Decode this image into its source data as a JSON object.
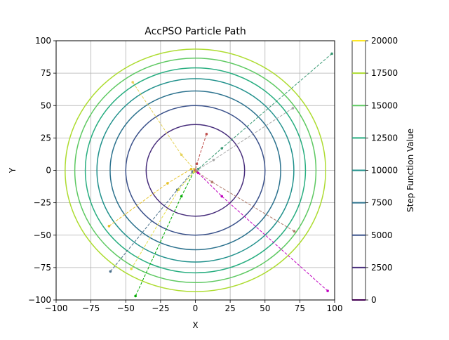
{
  "chart_data": {
    "type": "contour",
    "title": "AccPSO Particle Path",
    "xlabel": "X",
    "ylabel": "Y",
    "xlim": [
      -100,
      100
    ],
    "ylim": [
      -100,
      100
    ],
    "xticks": [
      -100,
      -75,
      -50,
      -25,
      0,
      25,
      50,
      75,
      100
    ],
    "yticks": [
      -100,
      -75,
      -50,
      -25,
      0,
      25,
      50,
      75,
      100
    ],
    "xtick_labels": [
      "−100",
      "−75",
      "−50",
      "−25",
      "0",
      "25",
      "50",
      "75",
      "100"
    ],
    "ytick_labels": [
      "−100",
      "−75",
      "−50",
      "−25",
      "0",
      "25",
      "50",
      "75",
      "100"
    ],
    "grid": true,
    "contour_levels": [
      2500,
      5000,
      7500,
      10000,
      12500,
      15000,
      17500
    ],
    "contour_colors": [
      "#472d7b",
      "#3b528b",
      "#2c728e",
      "#21918c",
      "#28ae80",
      "#5ec962",
      "#addc30"
    ],
    "colorbar": {
      "label": "Step Function Value",
      "ticks": [
        0,
        2500,
        5000,
        7500,
        10000,
        12500,
        15000,
        17500,
        20000
      ],
      "tick_labels": [
        "0",
        "2500",
        "5000",
        "7500",
        "10000",
        "12500",
        "15000",
        "17500",
        "20000"
      ],
      "levels": [
        0,
        2500,
        5000,
        7500,
        10000,
        12500,
        15000,
        17500,
        20000
      ],
      "colors": [
        "#440154",
        "#472d7b",
        "#3b528b",
        "#2c728e",
        "#21918c",
        "#28ae80",
        "#5ec962",
        "#addc30",
        "#fde725"
      ]
    },
    "particle_paths": [
      {
        "color": "#e6c229",
        "points": [
          [
            -62,
            -43
          ],
          [
            -20,
            -10
          ],
          [
            -3,
            1
          ]
        ]
      },
      {
        "color": "#e6d35a",
        "points": [
          [
            -45,
            68
          ],
          [
            -10,
            12
          ],
          [
            -1,
            1
          ]
        ]
      },
      {
        "color": "#00aa00",
        "points": [
          [
            -43,
            -97
          ],
          [
            -10,
            -20
          ],
          [
            -1,
            -1
          ]
        ]
      },
      {
        "color": "#4a6f8a",
        "points": [
          [
            -61,
            -78
          ],
          [
            -13,
            -15
          ],
          [
            -2,
            -1
          ]
        ]
      },
      {
        "color": "#e6e04a",
        "points": [
          [
            -46,
            -76
          ],
          [
            -12,
            -15
          ],
          [
            -1,
            -1
          ]
        ]
      },
      {
        "color": "#c0504d",
        "points": [
          [
            8,
            28
          ],
          [
            1,
            5
          ],
          [
            0,
            0
          ]
        ]
      },
      {
        "color": "#3a9a74",
        "points": [
          [
            98,
            90
          ],
          [
            19,
            17
          ],
          [
            2,
            1
          ]
        ]
      },
      {
        "color": "#a8a8a8",
        "points": [
          [
            70,
            48
          ],
          [
            13,
            8
          ],
          [
            1,
            0
          ]
        ]
      },
      {
        "color": "#b07a6a",
        "points": [
          [
            71,
            -47
          ],
          [
            12,
            -9
          ],
          [
            1,
            -1
          ]
        ]
      },
      {
        "color": "#c000c0",
        "points": [
          [
            95,
            -93
          ],
          [
            19,
            -20
          ],
          [
            2,
            -2
          ]
        ]
      }
    ]
  }
}
